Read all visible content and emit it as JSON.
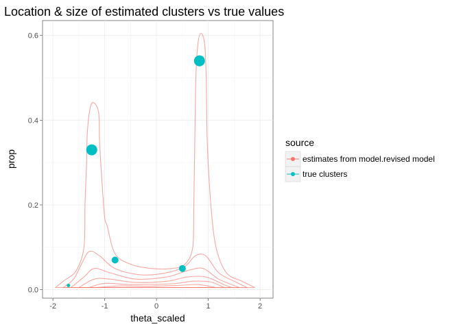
{
  "chart_data": {
    "type": "scatter",
    "title": "Location & size of estimated clusters vs true values",
    "xlabel": "theta_scaled",
    "ylabel": "prop",
    "xlim": [
      -2.2,
      2.25
    ],
    "ylim": [
      -0.02,
      0.635
    ],
    "x_ticks": [
      -2,
      -1,
      0,
      1,
      2
    ],
    "x_tick_labels": [
      "-2",
      "-1",
      "0",
      "1",
      "2"
    ],
    "y_ticks": [
      0.0,
      0.2,
      0.4,
      0.6
    ],
    "y_tick_labels": [
      "0.0",
      "0.2",
      "0.4",
      "0.6"
    ],
    "grid": true,
    "legend": {
      "title": "source",
      "placement": "right",
      "entries": [
        {
          "label": "estimates from model.revised model",
          "color": "#F8766D"
        },
        {
          "label": "true clusters",
          "color": "#00BFC4"
        }
      ]
    },
    "series": [
      {
        "name": "true clusters",
        "color": "#00BFC4",
        "points": [
          {
            "x": 0.83,
            "y": 0.54,
            "size": "large"
          },
          {
            "x": -1.25,
            "y": 0.33,
            "size": "large"
          },
          {
            "x": -0.8,
            "y": 0.07,
            "size": "medium"
          },
          {
            "x": 0.5,
            "y": 0.05,
            "size": "medium"
          },
          {
            "x": -1.7,
            "y": 0.01,
            "size": "small"
          }
        ]
      },
      {
        "name": "estimates from model.revised model",
        "type": "density_contour",
        "color": "#F8766D",
        "contours": [
          [
            [
              -1.95,
              0.005
            ],
            [
              -1.8,
              0.02
            ],
            [
              -1.55,
              0.045
            ],
            [
              -1.4,
              0.1
            ],
            [
              -1.38,
              0.2
            ],
            [
              -1.35,
              0.3
            ],
            [
              -1.33,
              0.38
            ],
            [
              -1.25,
              0.44
            ],
            [
              -1.12,
              0.42
            ],
            [
              -1.1,
              0.35
            ],
            [
              -1.05,
              0.25
            ],
            [
              -1.0,
              0.17
            ],
            [
              -0.95,
              0.15
            ],
            [
              -0.8,
              0.085
            ],
            [
              -0.5,
              0.06
            ],
            [
              -0.1,
              0.05
            ],
            [
              0.3,
              0.05
            ],
            [
              0.55,
              0.06
            ],
            [
              0.7,
              0.1
            ],
            [
              0.72,
              0.2
            ],
            [
              0.74,
              0.35
            ],
            [
              0.76,
              0.5
            ],
            [
              0.8,
              0.58
            ],
            [
              0.86,
              0.605
            ],
            [
              0.93,
              0.58
            ],
            [
              0.96,
              0.5
            ],
            [
              0.98,
              0.35
            ],
            [
              1.05,
              0.2
            ],
            [
              1.15,
              0.1
            ],
            [
              1.35,
              0.04
            ],
            [
              1.65,
              0.02
            ],
            [
              1.9,
              0.005
            ]
          ],
          [
            [
              -1.8,
              0.005
            ],
            [
              -1.6,
              0.025
            ],
            [
              -1.45,
              0.06
            ],
            [
              -1.3,
              0.09
            ],
            [
              -1.1,
              0.08
            ],
            [
              -0.8,
              0.05
            ],
            [
              -0.3,
              0.035
            ],
            [
              0.2,
              0.04
            ],
            [
              0.55,
              0.055
            ],
            [
              0.75,
              0.08
            ],
            [
              0.95,
              0.08
            ],
            [
              1.2,
              0.04
            ],
            [
              1.5,
              0.02
            ],
            [
              1.75,
              0.005
            ]
          ],
          [
            [
              -1.65,
              0.005
            ],
            [
              -1.4,
              0.03
            ],
            [
              -1.2,
              0.05
            ],
            [
              -0.9,
              0.04
            ],
            [
              -0.4,
              0.025
            ],
            [
              0.2,
              0.03
            ],
            [
              0.6,
              0.045
            ],
            [
              0.9,
              0.05
            ],
            [
              1.2,
              0.025
            ],
            [
              1.6,
              0.005
            ]
          ],
          [
            [
              -1.5,
              0.005
            ],
            [
              -1.2,
              0.025
            ],
            [
              -0.9,
              0.025
            ],
            [
              -0.4,
              0.017
            ],
            [
              0.2,
              0.02
            ],
            [
              0.6,
              0.03
            ],
            [
              0.95,
              0.03
            ],
            [
              1.3,
              0.012
            ],
            [
              1.45,
              0.005
            ]
          ],
          [
            [
              -1.3,
              0.005
            ],
            [
              -1.0,
              0.015
            ],
            [
              -0.5,
              0.012
            ],
            [
              0.3,
              0.014
            ],
            [
              0.7,
              0.02
            ],
            [
              1.05,
              0.018
            ],
            [
              1.3,
              0.005
            ]
          ],
          [
            [
              -1.15,
              0.005
            ],
            [
              -0.7,
              0.009
            ],
            [
              -0.2,
              0.008
            ],
            [
              0.4,
              0.01
            ],
            [
              0.8,
              0.012
            ],
            [
              1.15,
              0.005
            ]
          ]
        ]
      }
    ]
  }
}
